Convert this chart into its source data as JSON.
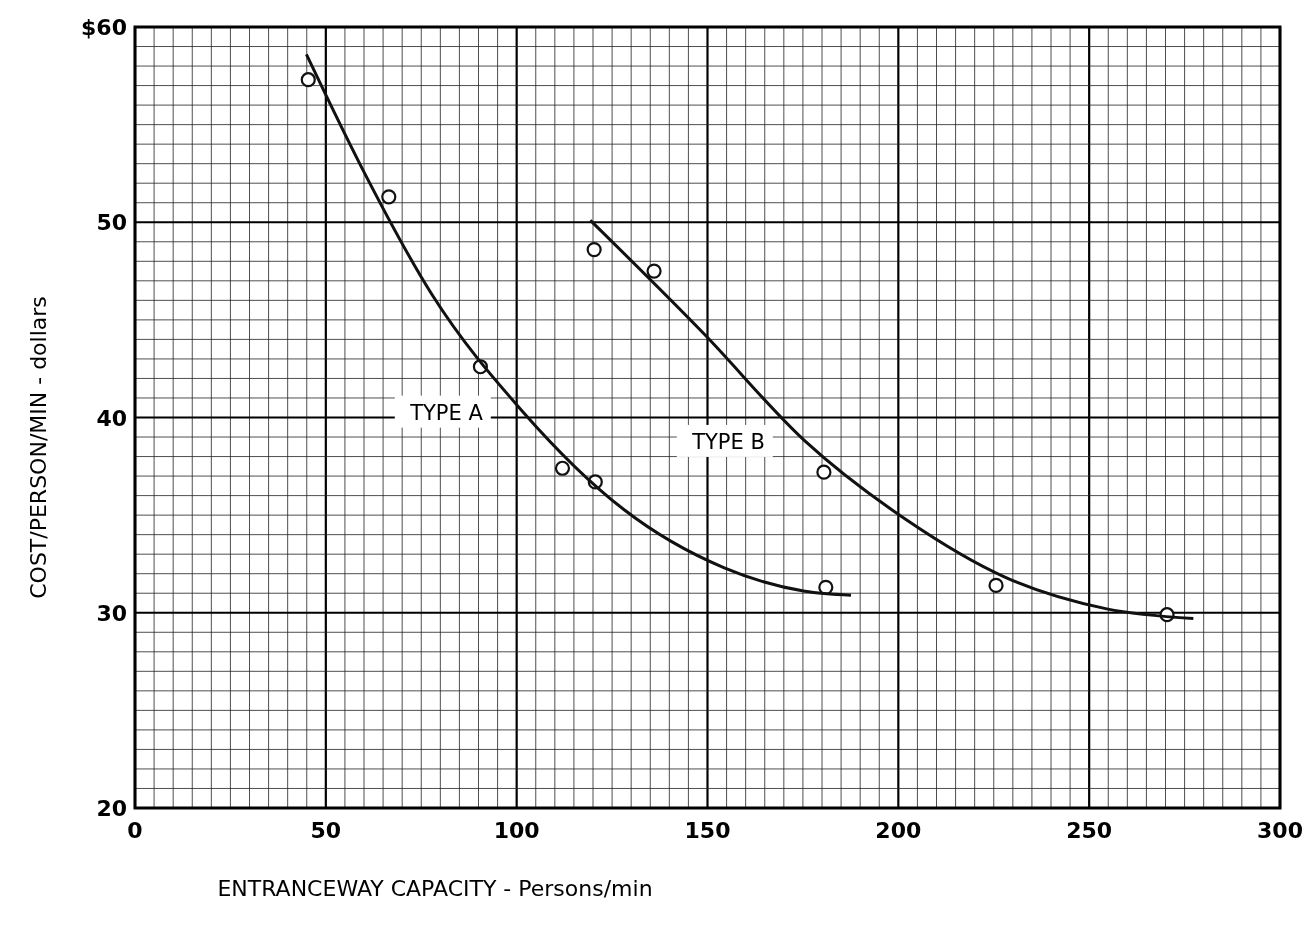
{
  "chart_data": {
    "type": "scatter",
    "xlabel": "ENTRANCEWAY CAPACITY  -  Persons/min",
    "ylabel": "COST/PERSON/MIN  -  dollars",
    "xlim": [
      0,
      300
    ],
    "xticks": [
      0,
      50,
      100,
      150,
      200,
      250,
      300
    ],
    "ylim": [
      20,
      60
    ],
    "yticks": [
      20,
      30,
      40,
      50,
      {
        "value": 60,
        "label": "$60"
      }
    ],
    "grid": true,
    "marker": "circle",
    "series": [
      {
        "type": "scatter",
        "color": "#111111",
        "x": [
          45.4,
          66.5,
          90.5,
          112,
          120.6,
          181
        ],
        "values": [
          57.3,
          51.3,
          42.6,
          37.4,
          36.7,
          31.3
        ]
      },
      {
        "type": "line",
        "name": "TYPE A",
        "color": "#111111",
        "line_style": "solid",
        "marker": "none",
        "x": [
          44.9,
          59.4,
          77.8,
          101.6,
          128,
          154.4,
          175.5,
          187.6
        ],
        "values": [
          58.6,
          52.8,
          46.3,
          40.3,
          35.3,
          32.3,
          31.1,
          30.9
        ]
      },
      {
        "type": "scatter",
        "color": "#111111",
        "x": [
          120.3,
          136,
          180.5,
          225.6,
          270.4
        ],
        "values": [
          48.6,
          47.5,
          37.2,
          31.4,
          29.9
        ]
      },
      {
        "type": "line",
        "name": "TYPE B",
        "color": "#111111",
        "line_style": "solid",
        "marker": "none",
        "x": [
          119.3,
          149,
          175.5,
          201.8,
          228.2,
          254.6,
          277.3
        ],
        "values": [
          50.1,
          44.3,
          38.8,
          34.8,
          31.8,
          30.2,
          29.7
        ]
      }
    ]
  }
}
